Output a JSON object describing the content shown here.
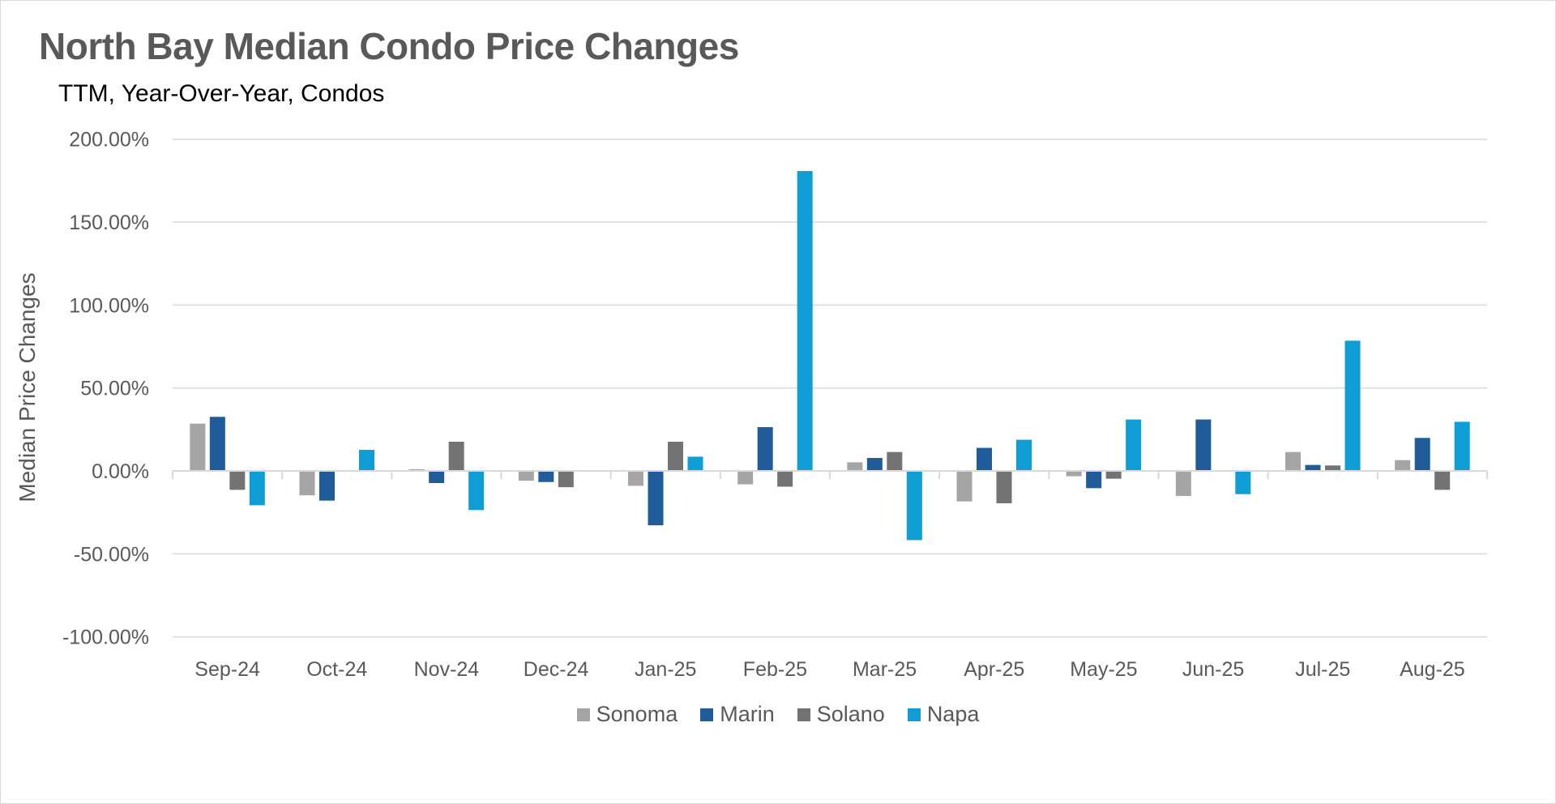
{
  "chart_data": {
    "type": "bar",
    "title": "North Bay Median Condo Price Changes",
    "subtitle": "TTM, Year-Over-Year, Condos",
    "xlabel": "",
    "ylabel": "Median Price Changes",
    "ylim": [
      -100,
      200
    ],
    "yticks": [
      200,
      150,
      100,
      50,
      0,
      -50,
      -100
    ],
    "ytick_labels": [
      "200.00%",
      "150.00%",
      "100.00%",
      "50.00%",
      "0.00%",
      "-50.00%",
      "-100.00%"
    ],
    "grid": true,
    "legend_position": "bottom",
    "categories": [
      "Sep-24",
      "Oct-24",
      "Nov-24",
      "Dec-24",
      "Jan-25",
      "Feb-25",
      "Mar-25",
      "Apr-25",
      "May-25",
      "Jun-25",
      "Jul-25",
      "Aug-25"
    ],
    "series": [
      {
        "name": "Sonoma",
        "color": "#A5A5A5",
        "values": [
          28.5,
          -14.7,
          1.0,
          -5.9,
          -9.0,
          -8.1,
          5.2,
          -18.4,
          -3.2,
          -15.1,
          11.4,
          6.5
        ]
      },
      {
        "name": "Marin",
        "color": "#1F5C99",
        "values": [
          32.6,
          -17.9,
          -7.3,
          -6.7,
          -32.8,
          26.4,
          7.8,
          13.9,
          -10.4,
          31.0,
          3.6,
          19.9
        ]
      },
      {
        "name": "Solano",
        "color": "#737373",
        "values": [
          -11.4,
          0,
          17.6,
          -9.8,
          17.6,
          -9.5,
          11.4,
          -19.5,
          -4.7,
          0,
          3.3,
          -11.4
        ]
      },
      {
        "name": "Napa",
        "color": "#0E9ED5",
        "values": [
          -20.7,
          12.7,
          -23.6,
          0.5,
          8.6,
          180.8,
          -41.7,
          18.8,
          31.0,
          -14.0,
          78.5,
          29.6
        ]
      }
    ]
  }
}
